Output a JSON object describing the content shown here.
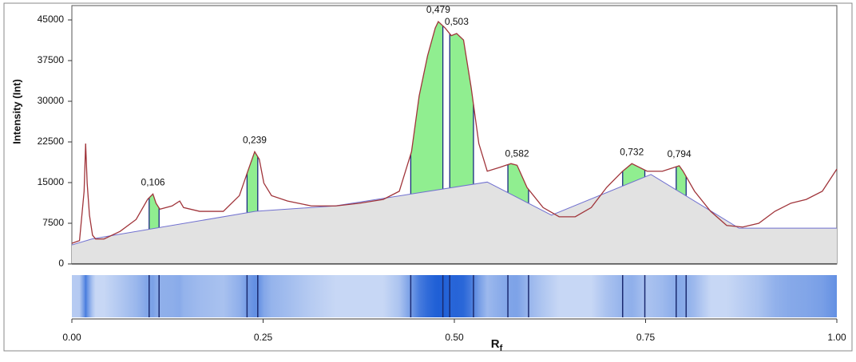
{
  "chart_data": {
    "type": "densitogram",
    "y_label": "Intensity (Int)",
    "x_label": "R",
    "x_label_subscript": "f",
    "xlim": [
      0,
      1
    ],
    "ylim": [
      0,
      45000
    ],
    "xticks": [
      {
        "value": 0,
        "label": "0.00"
      },
      {
        "value": 0.25,
        "label": "0.25"
      },
      {
        "value": 0.5,
        "label": "0.50"
      },
      {
        "value": 0.75,
        "label": "0.75"
      },
      {
        "value": 1,
        "label": "1.00"
      }
    ],
    "yticks": [
      0,
      7500,
      15000,
      22500,
      30000,
      37500,
      45000
    ],
    "x": [
      0,
      0.01,
      0.016,
      0.018,
      0.02,
      0.023,
      0.027,
      0.031,
      0.042,
      0.063,
      0.084,
      0.099,
      0.106,
      0.11,
      0.115,
      0.131,
      0.141,
      0.146,
      0.167,
      0.198,
      0.219,
      0.23,
      0.239,
      0.245,
      0.251,
      0.261,
      0.282,
      0.313,
      0.345,
      0.376,
      0.407,
      0.428,
      0.444,
      0.454,
      0.465,
      0.475,
      0.479,
      0.488,
      0.496,
      0.503,
      0.512,
      0.522,
      0.532,
      0.543,
      0.559,
      0.574,
      0.582,
      0.595,
      0.616,
      0.637,
      0.658,
      0.679,
      0.699,
      0.72,
      0.732,
      0.752,
      0.772,
      0.794,
      0.799,
      0.814,
      0.835,
      0.856,
      0.877,
      0.898,
      0.919,
      0.94,
      0.96,
      0.981,
      1
    ],
    "values": [
      3800,
      4300,
      13400,
      22200,
      14900,
      9000,
      5300,
      4600,
      4600,
      6000,
      8200,
      11900,
      12900,
      11200,
      10100,
      10700,
      11600,
      10400,
      9700,
      9700,
      12600,
      17100,
      20700,
      19300,
      14900,
      12600,
      11600,
      10700,
      10700,
      11200,
      11900,
      13400,
      20700,
      31000,
      38400,
      43500,
      44700,
      43500,
      42100,
      42500,
      41300,
      32500,
      22200,
      17100,
      17800,
      18500,
      18200,
      14100,
      10400,
      8700,
      8700,
      10400,
      14100,
      17100,
      18500,
      17100,
      17100,
      18100,
      17100,
      13400,
      9700,
      7100,
      6800,
      7500,
      9700,
      11200,
      11900,
      13400,
      17500
    ],
    "baseline_x": [
      0,
      0.026,
      0.24,
      0.344,
      0.543,
      0.627,
      0.757,
      0.872,
      1
    ],
    "baseline": [
      3500,
      4600,
      9700,
      10700,
      15100,
      9000,
      16500,
      6600,
      6600
    ],
    "peaks": [
      {
        "label": "0,106",
        "x": 0.106,
        "start": 0.101,
        "end": 0.114
      },
      {
        "label": "0,239",
        "x": 0.239,
        "start": 0.229,
        "end": 0.243
      },
      {
        "label": "0,479",
        "x": 0.479,
        "start": 0.443,
        "end": 0.485
      },
      {
        "label": "0,503",
        "x": 0.503,
        "start": 0.494,
        "end": 0.525
      },
      {
        "label": "0,582",
        "x": 0.582,
        "start": 0.57,
        "end": 0.597
      },
      {
        "label": "0,732",
        "x": 0.732,
        "start": 0.72,
        "end": 0.749
      },
      {
        "label": "0,794",
        "x": 0.794,
        "start": 0.79,
        "end": 0.803
      }
    ],
    "curve_color": "#a0343a",
    "baseline_color": "#7070d0",
    "baseline_fill": "#e2e2e2",
    "peak_color": "#90ee90",
    "lane_color": "#1f5fd6"
  }
}
